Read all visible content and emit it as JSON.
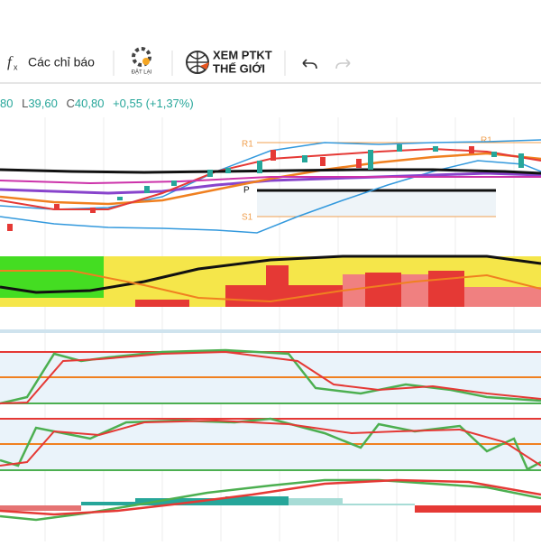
{
  "toolbar": {
    "indicators": "Các chỉ báo",
    "reset": "ĐẶT LẠI",
    "world_line1": "XEM PTKT",
    "world_line2": "THẾ GIỚI"
  },
  "quote": {
    "high_value": "80",
    "low_label": "L",
    "low_value": "39,60",
    "close_label": "C",
    "close_value": "40,80",
    "change": "+0,55 (+1,37%)"
  },
  "levels": {
    "r1": "R1",
    "r1_right": "R1",
    "pivot": "P",
    "s1": "S1"
  }
}
